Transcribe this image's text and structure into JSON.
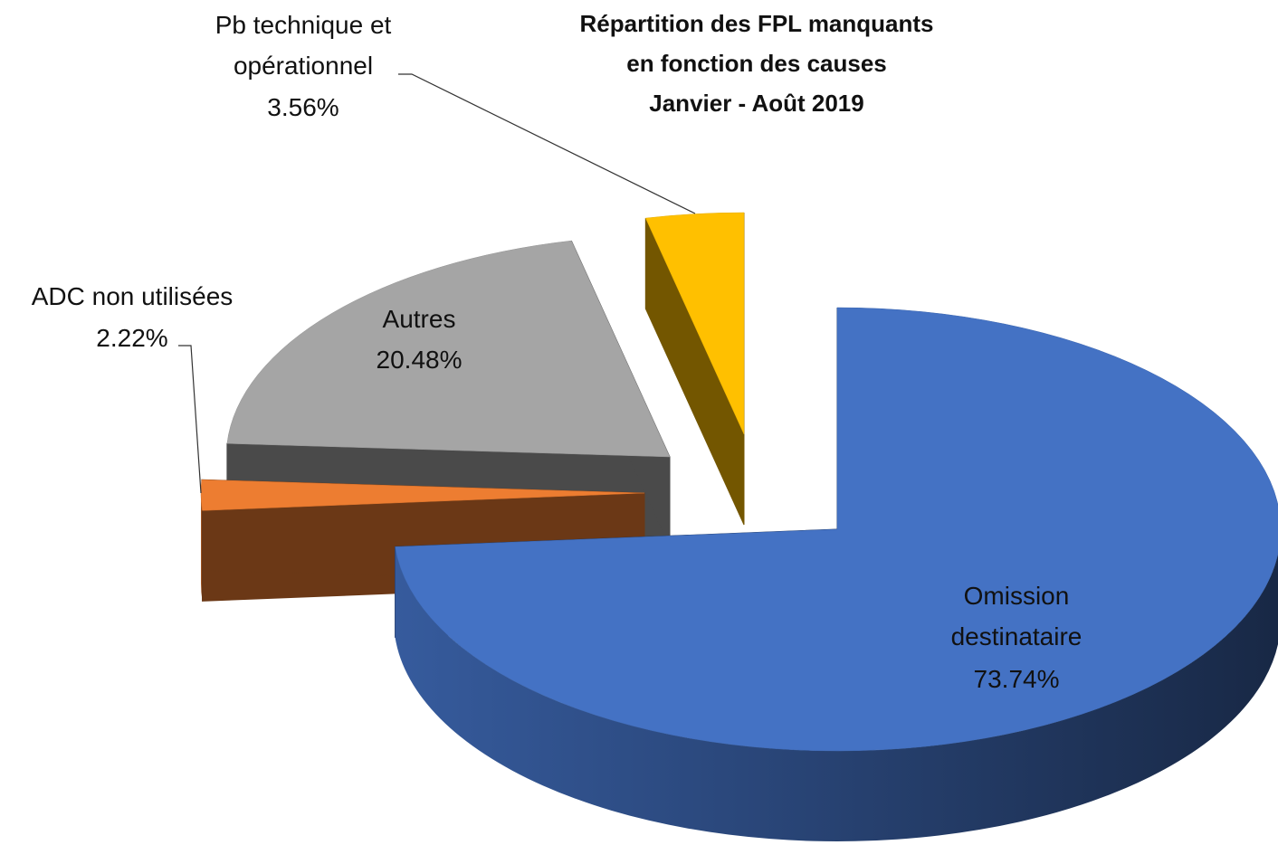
{
  "chart_data": {
    "type": "pie3d",
    "title": [
      "Répartition des FPL manquants",
      "en fonction des causes",
      "Janvier - Août 2019"
    ],
    "categories": [
      "Omission destinataire",
      "ADC non utilisées",
      "Autres",
      "Pb technique et opérationnel"
    ],
    "values": [
      73.74,
      2.22,
      20.48,
      3.56
    ],
    "value_labels": [
      "73.74%",
      "2.22%",
      "20.48%",
      "3.56%"
    ],
    "colors": [
      "#4472c4",
      "#ed7d31",
      "#a5a5a5",
      "#ffc000"
    ]
  }
}
